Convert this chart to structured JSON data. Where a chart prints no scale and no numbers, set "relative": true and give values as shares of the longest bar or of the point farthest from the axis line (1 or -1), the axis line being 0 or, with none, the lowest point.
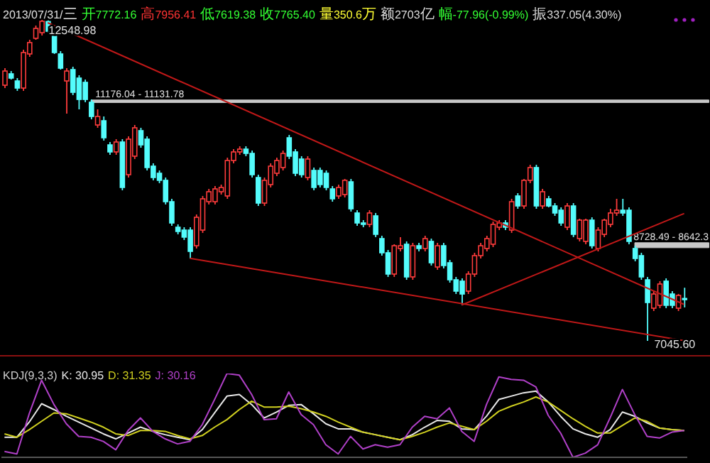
{
  "chart_data": [
    {
      "type": "candlestick",
      "title": "2013/07/31/三",
      "tick_labels": false,
      "subtitle": "开7772.16 高7956.41 低7619.38 收7765.40 量350.6万 额2703亿 幅-77.96(-0.99%) 振337.05(4.30%)",
      "annotations": [
        "12548.98",
        "7045.60"
      ],
      "categories": [
        null,
        null,
        null,
        null,
        null,
        null,
        null,
        null,
        null,
        null,
        null,
        null,
        null,
        null,
        null,
        null,
        null,
        null,
        null,
        null,
        null,
        null,
        null,
        null,
        null,
        null,
        null,
        null,
        null,
        null,
        null,
        null,
        null,
        null,
        null,
        null,
        null,
        null,
        null,
        null,
        null,
        null,
        null,
        null,
        null,
        null,
        null,
        null,
        null,
        null,
        null,
        null,
        null,
        null,
        null,
        null,
        null,
        null,
        null,
        null,
        null,
        null,
        null,
        null,
        null,
        null,
        null,
        null,
        null,
        null,
        null,
        null,
        null,
        null,
        null,
        null,
        null,
        null,
        null,
        null,
        null,
        null,
        null,
        null,
        null,
        null,
        null,
        null,
        null,
        null,
        null,
        null,
        null,
        null,
        null,
        null,
        null,
        null,
        null,
        null,
        null,
        null,
        null,
        null,
        null,
        null,
        null,
        null,
        null,
        null,
        null
      ],
      "ohlc": [
        [
          11429,
          11721,
          11380,
          11672
        ],
        [
          11624,
          11672,
          11526,
          11551
        ],
        [
          11502,
          11551,
          11332,
          11380
        ],
        [
          11380,
          12038,
          11332,
          11989
        ],
        [
          11965,
          12208,
          11916,
          12160
        ],
        [
          12233,
          12452,
          12208,
          12403
        ],
        [
          12330,
          12548.98,
          12281,
          12525
        ],
        [
          12520,
          12540,
          12330,
          12354
        ],
        [
          12281,
          12354,
          11965,
          11989
        ],
        [
          11965,
          12013,
          11697,
          11721
        ],
        [
          11502,
          11721,
          10942,
          11672
        ],
        [
          11697,
          11746,
          11259,
          11307
        ],
        [
          11551,
          11599,
          11015,
          11185
        ],
        [
          11478,
          11526,
          11137,
          11185
        ],
        [
          11137,
          11185,
          10844,
          10893
        ],
        [
          10747,
          11015,
          10699,
          10893
        ],
        [
          10820,
          10893,
          10479,
          10528
        ],
        [
          10406,
          10455,
          10236,
          10285
        ],
        [
          10285,
          10504,
          10236,
          10455
        ],
        [
          10455,
          10504,
          9627,
          9676
        ],
        [
          9895,
          10552,
          9846,
          10504
        ],
        [
          10212,
          10747,
          10163,
          10699
        ],
        [
          10650,
          10699,
          10357,
          10406
        ],
        [
          10504,
          10552,
          9968,
          10017
        ],
        [
          10041,
          10090,
          9798,
          9846
        ],
        [
          9919,
          9968,
          9749,
          9798
        ],
        [
          9798,
          9846,
          9384,
          9432
        ],
        [
          9432,
          9481,
          9018,
          9067
        ],
        [
          8994,
          9043,
          8872,
          8921
        ],
        [
          8945,
          8994,
          8775,
          8824
        ],
        [
          8945,
          8994,
          8458,
          8580
        ],
        [
          8677,
          9213,
          8629,
          9164
        ],
        [
          8945,
          9530,
          8897,
          9481
        ],
        [
          9432,
          9651,
          9384,
          9603
        ],
        [
          9432,
          9700,
          9384,
          9651
        ],
        [
          9603,
          9725,
          9554,
          9676
        ],
        [
          9530,
          10187,
          9481,
          10138
        ],
        [
          10138,
          10333,
          10090,
          10285
        ],
        [
          10285,
          10382,
          10236,
          10333
        ],
        [
          10333,
          10382,
          10212,
          10260
        ],
        [
          10260,
          10309,
          9846,
          9895
        ],
        [
          9846,
          9895,
          9359,
          9408
        ],
        [
          9408,
          9846,
          9359,
          9798
        ],
        [
          9725,
          10090,
          9676,
          10041
        ],
        [
          9919,
          10187,
          9871,
          10138
        ],
        [
          10017,
          10309,
          9968,
          10260
        ],
        [
          10528,
          10577,
          10163,
          10212
        ],
        [
          10285,
          10333,
          9871,
          9919
        ],
        [
          10163,
          10212,
          9846,
          9895
        ],
        [
          9846,
          10212,
          9798,
          10163
        ],
        [
          9968,
          10017,
          9627,
          9676
        ],
        [
          9968,
          10017,
          9676,
          9725
        ],
        [
          9919,
          9968,
          9627,
          9676
        ],
        [
          9651,
          9700,
          9432,
          9481
        ],
        [
          9530,
          9725,
          9481,
          9676
        ],
        [
          9554,
          9822,
          9505,
          9798
        ],
        [
          9773,
          9822,
          9262,
          9310
        ],
        [
          9238,
          9286,
          9018,
          9067
        ],
        [
          9067,
          9116,
          8994,
          9043
        ],
        [
          9043,
          9286,
          8994,
          9238
        ],
        [
          9189,
          9238,
          8824,
          8872
        ],
        [
          8799,
          8848,
          8507,
          8556
        ],
        [
          8556,
          8604,
          8142,
          8191
        ],
        [
          8191,
          8702,
          8142,
          8677
        ],
        [
          8629,
          8824,
          8580,
          8677
        ],
        [
          8702,
          8751,
          8093,
          8142
        ],
        [
          8142,
          8726,
          8093,
          8677
        ],
        [
          8677,
          8726,
          8580,
          8629
        ],
        [
          8629,
          8848,
          8580,
          8799
        ],
        [
          8751,
          8799,
          8337,
          8385
        ],
        [
          8312,
          8726,
          8264,
          8677
        ],
        [
          8677,
          8726,
          8288,
          8337
        ],
        [
          8385,
          8434,
          8044,
          8093
        ],
        [
          8093,
          8142,
          7849,
          7898
        ],
        [
          8069,
          8117,
          7655,
          7849
        ],
        [
          7898,
          8239,
          7849,
          8191
        ],
        [
          8191,
          8556,
          8142,
          8507
        ],
        [
          8507,
          8726,
          8458,
          8677
        ],
        [
          8629,
          8848,
          8580,
          8799
        ],
        [
          8702,
          9091,
          8653,
          9043
        ],
        [
          8994,
          9116,
          8945,
          9067
        ],
        [
          9067,
          9116,
          8945,
          8994
        ],
        [
          8945,
          9481,
          8897,
          9432
        ],
        [
          9530,
          9578,
          9310,
          9359
        ],
        [
          9359,
          9822,
          9310,
          9798
        ],
        [
          9798,
          10065,
          9749,
          10017
        ],
        [
          10017,
          10065,
          9310,
          9359
        ],
        [
          9359,
          9651,
          9310,
          9603
        ],
        [
          9481,
          9530,
          9335,
          9359
        ],
        [
          9359,
          9408,
          9189,
          9238
        ],
        [
          9286,
          9335,
          9018,
          9067
        ],
        [
          8994,
          9408,
          8945,
          9359
        ],
        [
          9359,
          9408,
          8824,
          8872
        ],
        [
          8799,
          9140,
          8751,
          9116
        ],
        [
          8751,
          9140,
          8702,
          9116
        ],
        [
          9116,
          9164,
          8629,
          8677
        ],
        [
          8629,
          8994,
          8580,
          8945
        ],
        [
          8872,
          9140,
          8824,
          9116
        ],
        [
          9043,
          9310,
          8994,
          9238
        ],
        [
          9238,
          9481,
          9189,
          9286
        ],
        [
          9286,
          9481,
          9189,
          9238
        ],
        [
          9286,
          9335,
          8702,
          8751
        ],
        [
          8629,
          8677,
          8410,
          8458
        ],
        [
          8507,
          8556,
          8093,
          8142
        ],
        [
          8093,
          8142,
          7045.6,
          7703
        ],
        [
          7606,
          7898,
          7557,
          7849
        ],
        [
          7655,
          8069,
          7606,
          8020
        ],
        [
          8069,
          8117,
          7606,
          7655
        ],
        [
          7849,
          7898,
          7606,
          7655
        ],
        [
          7606,
          7850,
          7557,
          7825
        ],
        [
          7772.16,
          7956.41,
          7619.38,
          7765.4
        ]
      ],
      "series": [
        {
          "type": "line",
          "color": "#c01818",
          "values": [
            null,
            null,
            null,
            null,
            null,
            null,
            null,
            12500,
            null,
            null,
            null,
            null,
            null,
            null,
            null,
            null,
            null,
            null,
            null,
            null,
            null,
            null,
            null,
            null,
            null,
            null,
            null,
            null,
            null,
            null,
            null,
            null,
            null,
            null,
            null,
            null,
            null,
            null,
            null,
            null,
            null,
            null,
            null,
            null,
            null,
            null,
            null,
            null,
            null,
            null,
            null,
            null,
            null,
            null,
            null,
            null,
            null,
            null,
            null,
            null,
            null,
            null,
            null,
            null,
            null,
            null,
            null,
            null,
            null,
            null,
            null,
            null,
            null,
            null,
            null,
            null,
            null,
            null,
            null,
            null,
            null,
            null,
            null,
            null,
            null,
            null,
            null,
            null,
            null,
            null,
            null,
            null,
            null,
            null,
            null,
            null,
            null,
            null,
            null,
            null,
            null,
            null,
            null,
            null,
            null,
            null,
            null,
            null,
            null,
            null,
            7670
          ]
        },
        {
          "type": "line",
          "color": "#c01818",
          "values": [
            null,
            null,
            null,
            null,
            null,
            null,
            null,
            null,
            null,
            null,
            null,
            null,
            null,
            null,
            null,
            null,
            null,
            null,
            null,
            null,
            null,
            null,
            null,
            null,
            null,
            null,
            null,
            null,
            null,
            null,
            8460,
            null,
            null,
            null,
            null,
            null,
            null,
            null,
            null,
            null,
            null,
            null,
            null,
            null,
            null,
            null,
            null,
            null,
            null,
            null,
            null,
            null,
            null,
            null,
            null,
            null,
            null,
            null,
            null,
            null,
            null,
            null,
            null,
            null,
            null,
            null,
            null,
            null,
            null,
            null,
            null,
            null,
            null,
            null,
            null,
            null,
            null,
            null,
            null,
            null,
            null,
            null,
            null,
            null,
            null,
            null,
            null,
            null,
            null,
            null,
            null,
            null,
            null,
            null,
            null,
            null,
            null,
            null,
            null,
            null,
            null,
            null,
            null,
            null,
            null,
            null,
            null,
            null,
            null,
            null,
            7050
          ]
        },
        {
          "type": "line",
          "color": "#c01818",
          "values": [
            null,
            null,
            null,
            null,
            null,
            null,
            null,
            null,
            null,
            null,
            null,
            null,
            null,
            null,
            null,
            null,
            null,
            null,
            null,
            null,
            null,
            null,
            null,
            null,
            null,
            null,
            null,
            null,
            null,
            null,
            null,
            null,
            null,
            null,
            null,
            null,
            null,
            null,
            null,
            null,
            null,
            null,
            null,
            null,
            null,
            null,
            null,
            null,
            null,
            null,
            null,
            null,
            null,
            null,
            null,
            null,
            null,
            null,
            null,
            null,
            null,
            null,
            null,
            null,
            null,
            null,
            null,
            null,
            null,
            null,
            null,
            null,
            null,
            null,
            7660,
            null,
            null,
            null,
            null,
            null,
            null,
            null,
            null,
            null,
            null,
            null,
            null,
            null,
            null,
            null,
            null,
            null,
            null,
            null,
            null,
            null,
            null,
            null,
            null,
            null,
            null,
            null,
            null,
            null,
            null,
            null,
            null,
            null,
            null,
            null,
            9230
          ]
        }
      ],
      "bands": [
        {
          "axis": "y",
          "from": 11131.78,
          "to": 11176.04,
          "label": "11176.04 - 11131.78",
          "color": "#c8c8c8"
        },
        {
          "axis": "y",
          "from": 8642.3,
          "to": 8728.49,
          "label": "8728.49 - 8642.3",
          "color": "#c8c8c8"
        }
      ]
    },
    {
      "type": "line",
      "title": "KDJ(9,3,3)",
      "relative": true,
      "legend": "top left",
      "categories": [
        null,
        null,
        null,
        null,
        null,
        null,
        null,
        null,
        null,
        null,
        null,
        null,
        null,
        null,
        null,
        null,
        null,
        null,
        null,
        null,
        null,
        null,
        null,
        null,
        null,
        null,
        null,
        null,
        null,
        null,
        null,
        null,
        null,
        null,
        null,
        null,
        null,
        null,
        null,
        null,
        null,
        null,
        null,
        null,
        null,
        null,
        null,
        null,
        null,
        null,
        null,
        null,
        null,
        null,
        null,
        null
      ],
      "series": [
        {
          "name": "K: 30.95",
          "color": "#e8e8e8",
          "values": [
            0.24,
            0.24,
            0.42,
            0.64,
            0.57,
            0.49,
            0.42,
            0.35,
            0.28,
            0.22,
            0.29,
            0.36,
            0.31,
            0.27,
            0.24,
            0.21,
            0.33,
            0.53,
            0.73,
            0.75,
            0.63,
            0.47,
            0.54,
            0.62,
            0.63,
            0.52,
            0.4,
            0.34,
            0.34,
            0.3,
            0.27,
            0.24,
            0.21,
            0.27,
            0.36,
            0.44,
            0.43,
            0.34,
            0.33,
            0.49,
            0.69,
            0.73,
            0.77,
            0.79,
            0.66,
            0.49,
            0.34,
            0.28,
            0.24,
            0.33,
            0.54,
            0.49,
            0.41,
            0.35,
            0.33,
            0.32
          ]
        },
        {
          "name": "D: 31.35",
          "color": "#d0d020",
          "values": [
            0.28,
            0.24,
            0.33,
            0.43,
            0.53,
            0.52,
            0.47,
            0.42,
            0.36,
            0.28,
            0.26,
            0.32,
            0.32,
            0.31,
            0.26,
            0.22,
            0.26,
            0.36,
            0.45,
            0.57,
            0.67,
            0.6,
            0.6,
            0.61,
            0.58,
            0.54,
            0.49,
            0.42,
            0.36,
            0.3,
            0.27,
            0.24,
            0.21,
            0.25,
            0.3,
            0.36,
            0.41,
            0.37,
            0.33,
            0.43,
            0.55,
            0.61,
            0.66,
            0.72,
            0.66,
            0.56,
            0.46,
            0.37,
            0.29,
            0.29,
            0.38,
            0.47,
            0.43,
            0.35,
            0.33,
            0.32
          ]
        },
        {
          "name": "J: 30.16",
          "color": "#b040c8",
          "values": [
            0.07,
            0.04,
            0.52,
            0.92,
            0.63,
            0.4,
            0.25,
            0.24,
            0.19,
            0.09,
            0.32,
            0.47,
            0.31,
            0.22,
            0.16,
            0.19,
            0.39,
            0.69,
            1,
            0.98,
            0.75,
            0.45,
            0.46,
            0.78,
            0.51,
            0.39,
            0.15,
            0.04,
            0.25,
            0.1,
            0.15,
            0.12,
            0.15,
            0.36,
            0.49,
            0.46,
            0.59,
            0.31,
            0.19,
            0.63,
            0.96,
            0.93,
            0.92,
            0.84,
            0.5,
            0.29,
            0,
            0.05,
            0.15,
            0.47,
            0.81,
            0.51,
            0.25,
            0.23,
            0.3,
            0.32
          ]
        }
      ]
    }
  ]
}
